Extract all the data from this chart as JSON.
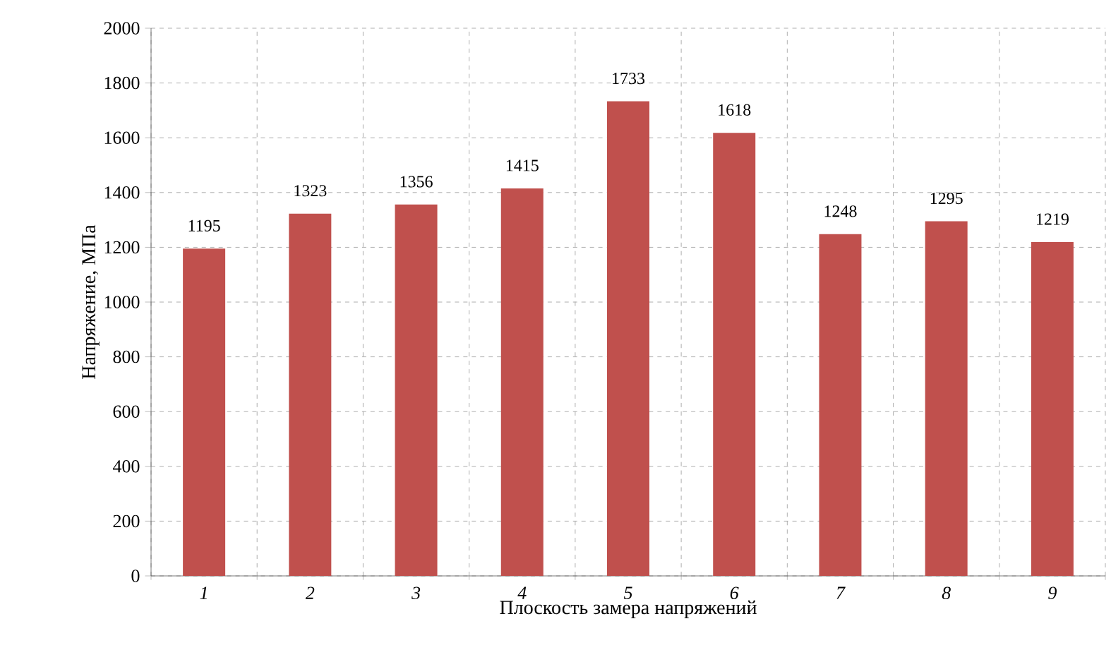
{
  "chart_data": {
    "type": "bar",
    "xlabel": "Плоскость замера напряжений",
    "ylabel": "Напряжение, МПа",
    "categories": [
      "1",
      "2",
      "3",
      "4",
      "5",
      "6",
      "7",
      "8",
      "9"
    ],
    "values": [
      1195,
      1323,
      1356,
      1415,
      1733,
      1618,
      1248,
      1295,
      1219
    ],
    "color": "#c0504d",
    "ylim": [
      0,
      2000
    ],
    "yticks": [
      0,
      200,
      400,
      600,
      800,
      1000,
      1200,
      1400,
      1600,
      1800,
      2000
    ],
    "grid": true,
    "data_labels": true
  }
}
